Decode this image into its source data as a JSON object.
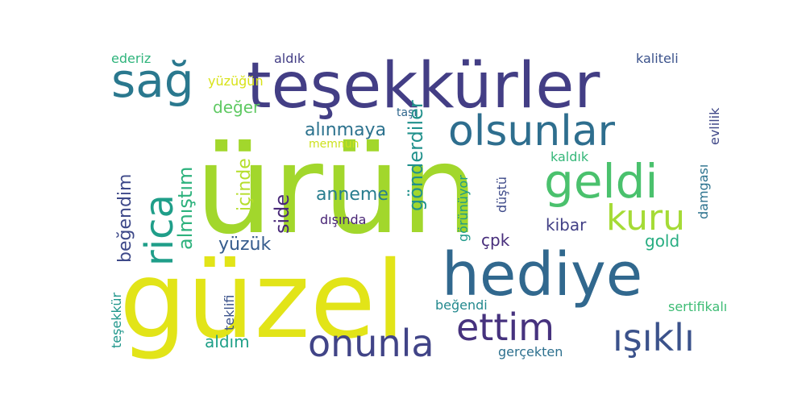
{
  "words": [
    {
      "id": "urun",
      "text": "ürün",
      "color": "#a2d72c"
    },
    {
      "id": "guzel",
      "text": "güzel",
      "color": "#e2e418"
    },
    {
      "id": "tesekkurler",
      "text": "teşekkürler",
      "color": "#433e85"
    },
    {
      "id": "hediye",
      "text": "hediye",
      "color": "#31688e"
    },
    {
      "id": "olsunlar",
      "text": "olsunlar",
      "color": "#2e6e8e"
    },
    {
      "id": "geldi",
      "text": "geldi",
      "color": "#4ac16d"
    },
    {
      "id": "sag",
      "text": "sağ",
      "color": "#2a788e"
    },
    {
      "id": "kuru",
      "text": "kuru",
      "color": "#a5db36"
    },
    {
      "id": "onunla",
      "text": "onunla",
      "color": "#414487"
    },
    {
      "id": "ettim",
      "text": "ettim",
      "color": "#46327e"
    },
    {
      "id": "isikli",
      "text": "ışıklı",
      "color": "#3b528b"
    },
    {
      "id": "rica",
      "text": "rica",
      "color": "#1f9e89"
    },
    {
      "id": "almistim",
      "text": "almıştım",
      "color": "#2db27d"
    },
    {
      "id": "alinmaya",
      "text": "alınmaya",
      "color": "#2c728e"
    },
    {
      "id": "anneme",
      "text": "anneme",
      "color": "#287d8e"
    },
    {
      "id": "side",
      "text": "side",
      "color": "#482878"
    },
    {
      "id": "yuzuk",
      "text": "yüzük",
      "color": "#365c8d"
    },
    {
      "id": "gonderdiler",
      "text": "gönderdiler",
      "color": "#21918c"
    },
    {
      "id": "begendim",
      "text": "beğendim",
      "color": "#3e4989"
    },
    {
      "id": "deger",
      "text": "değer",
      "color": "#5ec962"
    },
    {
      "id": "cpk",
      "text": "çpk",
      "color": "#472d7b"
    },
    {
      "id": "kibar",
      "text": "kibar",
      "color": "#424086"
    },
    {
      "id": "gold",
      "text": "gold",
      "color": "#27ad81"
    },
    {
      "id": "aldim",
      "text": "aldım",
      "color": "#1fa088"
    },
    {
      "id": "begendi",
      "text": "beğendi",
      "color": "#23898e"
    },
    {
      "id": "gercekten",
      "text": "gerçekten",
      "color": "#2d708e"
    },
    {
      "id": "sertifikali",
      "text": "sertifikalı",
      "color": "#3dbc74"
    },
    {
      "id": "aldik",
      "text": "aldık",
      "color": "#433e85"
    },
    {
      "id": "kaliteli",
      "text": "kaliteli",
      "color": "#3b528b"
    },
    {
      "id": "ederiz",
      "text": "ederiz",
      "color": "#2fb47c"
    },
    {
      "id": "yuzugun",
      "text": "yüzüğün",
      "color": "#d8e219"
    },
    {
      "id": "tasi",
      "text": "taşı",
      "color": "#31688e"
    },
    {
      "id": "memnun",
      "text": "memnun",
      "color": "#cde11d"
    },
    {
      "id": "kaldik",
      "text": "kaldık",
      "color": "#35b779"
    },
    {
      "id": "disinda",
      "text": "dışında",
      "color": "#482475"
    },
    {
      "id": "icinde",
      "text": "içinde",
      "color": "#b5de2b"
    },
    {
      "id": "gorunuyor",
      "text": "görünüyor",
      "color": "#1f9a8a"
    },
    {
      "id": "dustu",
      "text": "düştü",
      "color": "#3e4a89"
    },
    {
      "id": "damgasi",
      "text": "damgası",
      "color": "#2c728e"
    },
    {
      "id": "evlilik",
      "text": "evlilik",
      "color": "#3f4788"
    },
    {
      "id": "teklifi",
      "text": "teklifi",
      "color": "#3b528b"
    },
    {
      "id": "tesekkur",
      "text": "teşekkür",
      "color": "#1f968b"
    }
  ]
}
